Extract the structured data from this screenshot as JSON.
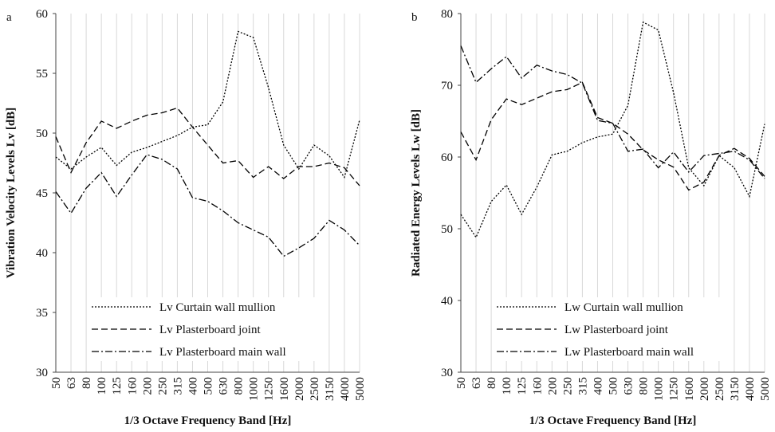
{
  "chart_data": [
    {
      "type": "line",
      "label": "a",
      "y_label": "Vibration Velocity Levels Lv [dB]",
      "x_label": "1/3 Octave Frequency Band [Hz]",
      "categories": [
        "50",
        "63",
        "80",
        "100",
        "125",
        "160",
        "200",
        "250",
        "315",
        "400",
        "500",
        "630",
        "800",
        "1000",
        "1250",
        "1600",
        "2000",
        "2500",
        "3150",
        "4000",
        "5000"
      ],
      "ylim": [
        30,
        60
      ],
      "yticks": [
        30,
        35,
        40,
        45,
        50,
        55,
        60
      ],
      "grid": "vertical",
      "series": [
        {
          "name": "Lv Curtain wall mullion",
          "color": "#000000",
          "style": "dotted",
          "values": [
            48,
            47,
            48,
            48.8,
            47.3,
            48.4,
            48.8,
            49.3,
            49.8,
            50.5,
            50.7,
            52.6,
            58.5,
            58,
            53.8,
            49,
            47,
            49,
            48.1,
            46.3,
            51.1
          ]
        },
        {
          "name": "Lv Plasterboard joint",
          "color": "#000000",
          "style": "dashed",
          "values": [
            49.7,
            46.7,
            49.2,
            51,
            50.4,
            51,
            51.5,
            51.7,
            52.1,
            50.5,
            49,
            47.5,
            47.7,
            46.3,
            47.2,
            46.2,
            47.2,
            47.2,
            47.5,
            47.1,
            45.6
          ]
        },
        {
          "name": "Lv Plasterboard main wall",
          "color": "#000000",
          "style": "dashdot",
          "values": [
            45.1,
            43.3,
            45.4,
            46.7,
            44.7,
            46.5,
            48.2,
            47.8,
            47,
            44.6,
            44.3,
            43.5,
            42.5,
            41.9,
            41.3,
            39.7,
            40.4,
            41.2,
            42.7,
            41.9,
            40.6
          ]
        }
      ]
    },
    {
      "type": "line",
      "label": "b",
      "y_label": "Radiated Energy Levels Lw [dB]",
      "x_label": "1/3 Octave Frequency Band [Hz]",
      "categories": [
        "50",
        "63",
        "80",
        "100",
        "125",
        "160",
        "200",
        "250",
        "315",
        "400",
        "500",
        "630",
        "800",
        "1000",
        "1250",
        "1600",
        "2000",
        "2500",
        "3150",
        "4000",
        "5000"
      ],
      "ylim": [
        30,
        80
      ],
      "yticks": [
        30,
        40,
        50,
        60,
        70,
        80
      ],
      "grid": "vertical",
      "series": [
        {
          "name": "Lw Curtain wall mullion",
          "color": "#000000",
          "style": "dotted",
          "values": [
            52,
            48.8,
            53.8,
            56.1,
            52,
            55.8,
            60.3,
            60.8,
            62,
            62.8,
            63.2,
            67.2,
            78.8,
            77.7,
            69,
            58.5,
            56,
            60.2,
            58.5,
            54.5,
            64.6
          ]
        },
        {
          "name": "Lw Plasterboard joint",
          "color": "#000000",
          "style": "dashed",
          "values": [
            63.5,
            59.6,
            65.2,
            68.1,
            67.3,
            68.2,
            69.1,
            69.4,
            70.4,
            65.5,
            64.7,
            63.2,
            61,
            59.6,
            58.6,
            55.4,
            56.5,
            60.2,
            61.2,
            59.8,
            57.3
          ]
        },
        {
          "name": "Lw Plasterboard main wall",
          "color": "#000000",
          "style": "dashdot",
          "values": [
            75.5,
            70.4,
            72.3,
            74,
            71,
            72.8,
            72,
            71.5,
            70.3,
            65.1,
            64.7,
            60.8,
            61.1,
            58.5,
            60.7,
            57.9,
            60.2,
            60.5,
            60.8,
            59.6,
            57
          ]
        }
      ]
    }
  ]
}
